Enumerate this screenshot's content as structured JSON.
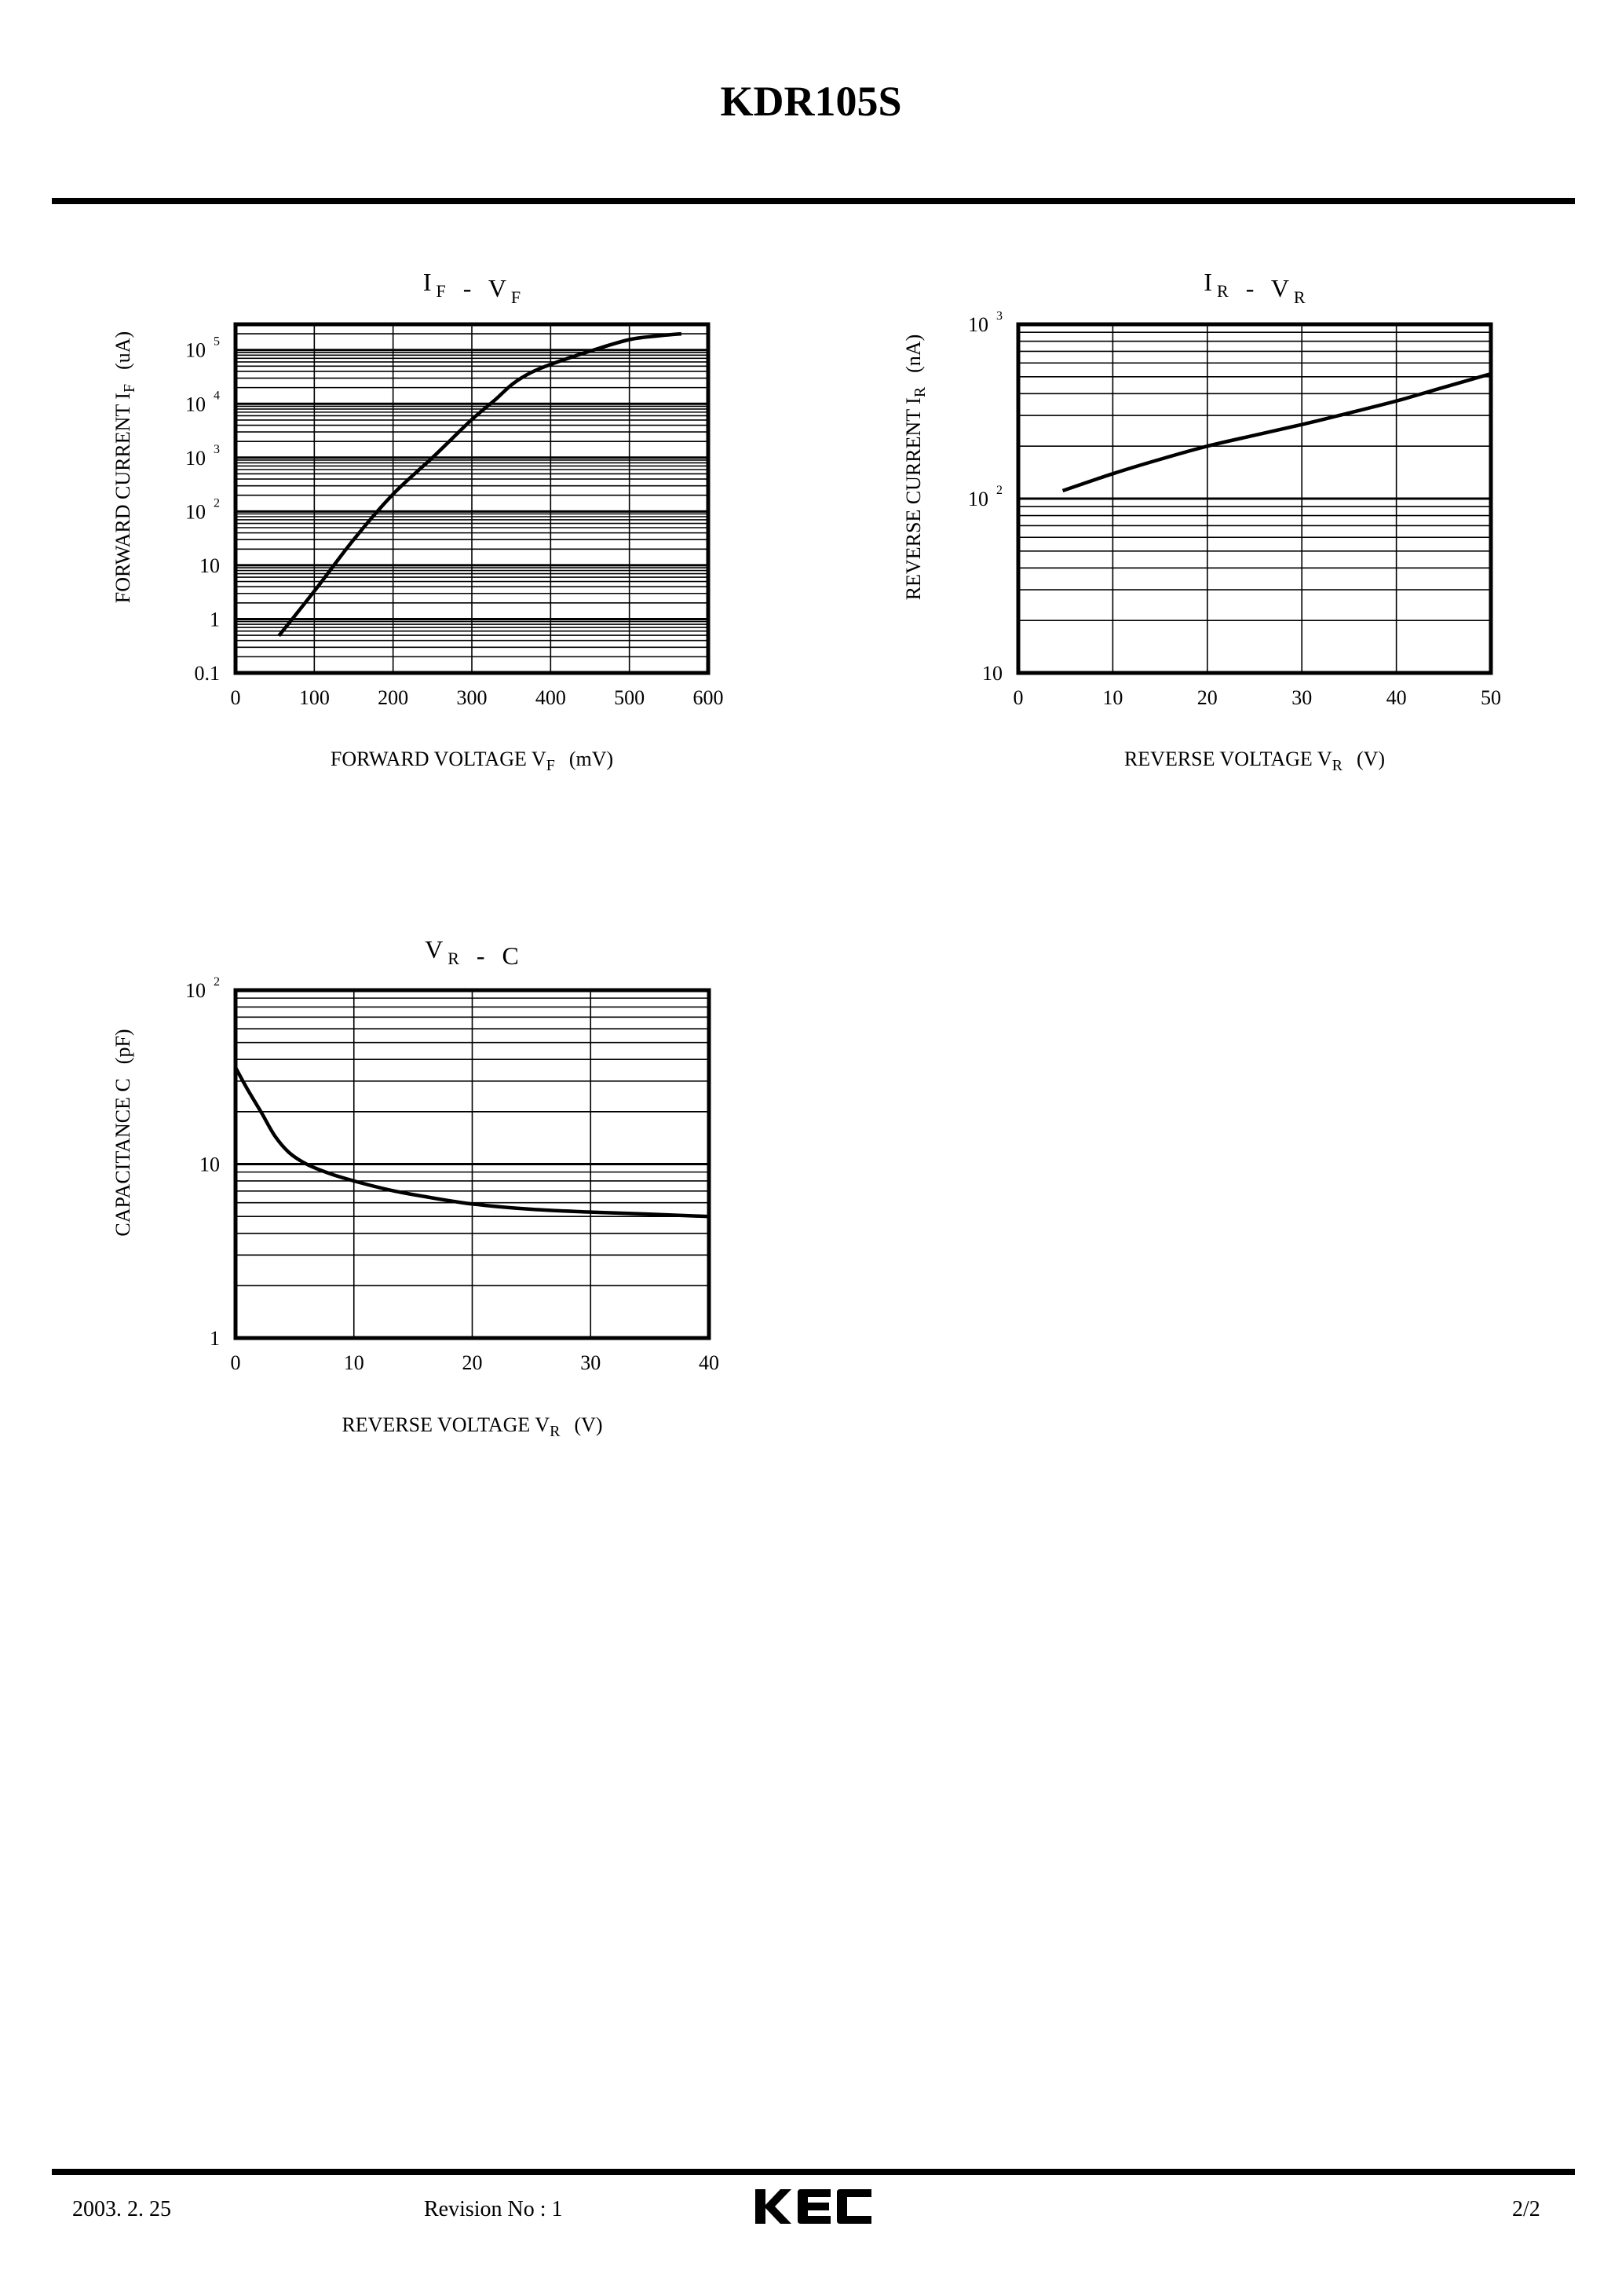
{
  "document": {
    "title": "KDR105S",
    "brand_color": "#000000"
  },
  "footer": {
    "date": "2003. 2. 25",
    "revision": "Revision No : 1",
    "logo_text": "KEC",
    "page": "2/2"
  },
  "chart_data": [
    {
      "id": "if-vf",
      "type": "line",
      "title": "IF - VF",
      "title_main": [
        "I",
        "F",
        "-",
        "V",
        "F"
      ],
      "xlabel": "FORWARD VOLTAGE VF (mV)",
      "xlabel_parts": {
        "main": "FORWARD VOLTAGE V",
        "sub": "F",
        "unit": "(mV)"
      },
      "ylabel": "FORWARD CURRENT IF (uA)",
      "ylabel_parts": {
        "main": "FORWARD CURRENT I",
        "sub": "F",
        "unit": "(uA)"
      },
      "xscale": "linear",
      "yscale": "log",
      "xlim": [
        0,
        600
      ],
      "ylim": [
        0.1,
        300000
      ],
      "xticks": [
        0,
        100,
        200,
        300,
        400,
        500,
        600
      ],
      "yticks": [
        {
          "value": 0.1,
          "label": "0.1",
          "exp": ""
        },
        {
          "value": 1,
          "label": "1",
          "exp": ""
        },
        {
          "value": 10,
          "label": "10",
          "exp": ""
        },
        {
          "value": 100,
          "label": "10",
          "exp": "2"
        },
        {
          "value": 1000,
          "label": "10",
          "exp": "3"
        },
        {
          "value": 10000,
          "label": "10",
          "exp": "4"
        },
        {
          "value": 100000,
          "label": "10",
          "exp": "5"
        }
      ],
      "grid": true,
      "series": [
        {
          "name": "IF",
          "x": [
            55,
            100,
            150,
            200,
            250,
            300,
            330,
            352,
            375,
            400,
            450,
            500,
            540,
            566
          ],
          "y": [
            0.49,
            3.3,
            30,
            210,
            1000,
            5100,
            12000,
            23500,
            38000,
            54000,
            95000,
            156000,
            185000,
            200000
          ]
        }
      ]
    },
    {
      "id": "ir-vr",
      "type": "line",
      "title": "IR - VR",
      "xlabel": "REVERSE VOLTAGE VR (V)",
      "xlabel_parts": {
        "main": "REVERSE VOLTAGE V",
        "sub": "R",
        "unit": "(V)"
      },
      "ylabel": "REVERSE CURRENT IR (nA)",
      "ylabel_parts": {
        "main": "REVERSE CURRENT I",
        "sub": "R",
        "unit": "(nA)"
      },
      "xscale": "linear",
      "yscale": "log",
      "xlim": [
        0,
        50
      ],
      "ylim": [
        10,
        1000
      ],
      "xticks": [
        0,
        10,
        20,
        30,
        40,
        50
      ],
      "yticks": [
        {
          "value": 10,
          "label": "10",
          "exp": ""
        },
        {
          "value": 100,
          "label": "10",
          "exp": "2"
        },
        {
          "value": 1000,
          "label": "10",
          "exp": "3"
        }
      ],
      "grid": true,
      "series": [
        {
          "name": "IR",
          "x": [
            4.7,
            10,
            15,
            20,
            25,
            30,
            35,
            40,
            45,
            50
          ],
          "y": [
            111,
            139,
            168,
            200,
            231,
            266,
            310,
            363,
            435,
            520
          ]
        }
      ]
    },
    {
      "id": "vr-c",
      "type": "line",
      "title": "VR - C",
      "xlabel": "REVERSE VOLTAGE VR (V)",
      "xlabel_parts": {
        "main": "REVERSE VOLTAGE V",
        "sub": "R",
        "unit": "(V)"
      },
      "ylabel": "CAPACITANCE C (pF)",
      "ylabel_parts": {
        "main": "CAPACITANCE C",
        "sub": "",
        "unit": "(pF)"
      },
      "xscale": "linear",
      "yscale": "log",
      "xlim": [
        0,
        40
      ],
      "ylim": [
        1,
        100
      ],
      "xticks": [
        0,
        10,
        20,
        30,
        40
      ],
      "yticks": [
        {
          "value": 1,
          "label": "1",
          "exp": ""
        },
        {
          "value": 10,
          "label": "10",
          "exp": ""
        },
        {
          "value": 100,
          "label": "10",
          "exp": "2"
        }
      ],
      "grid": true,
      "series": [
        {
          "name": "C",
          "x": [
            0,
            1,
            2.2,
            3.3,
            4.5,
            6,
            8,
            10,
            13,
            16,
            20,
            25,
            30,
            35,
            40
          ],
          "y": [
            35.9,
            27,
            19.7,
            14.6,
            11.7,
            10.0,
            8.8,
            8.0,
            7.1,
            6.5,
            5.9,
            5.5,
            5.3,
            5.15,
            5.0
          ]
        }
      ]
    }
  ]
}
